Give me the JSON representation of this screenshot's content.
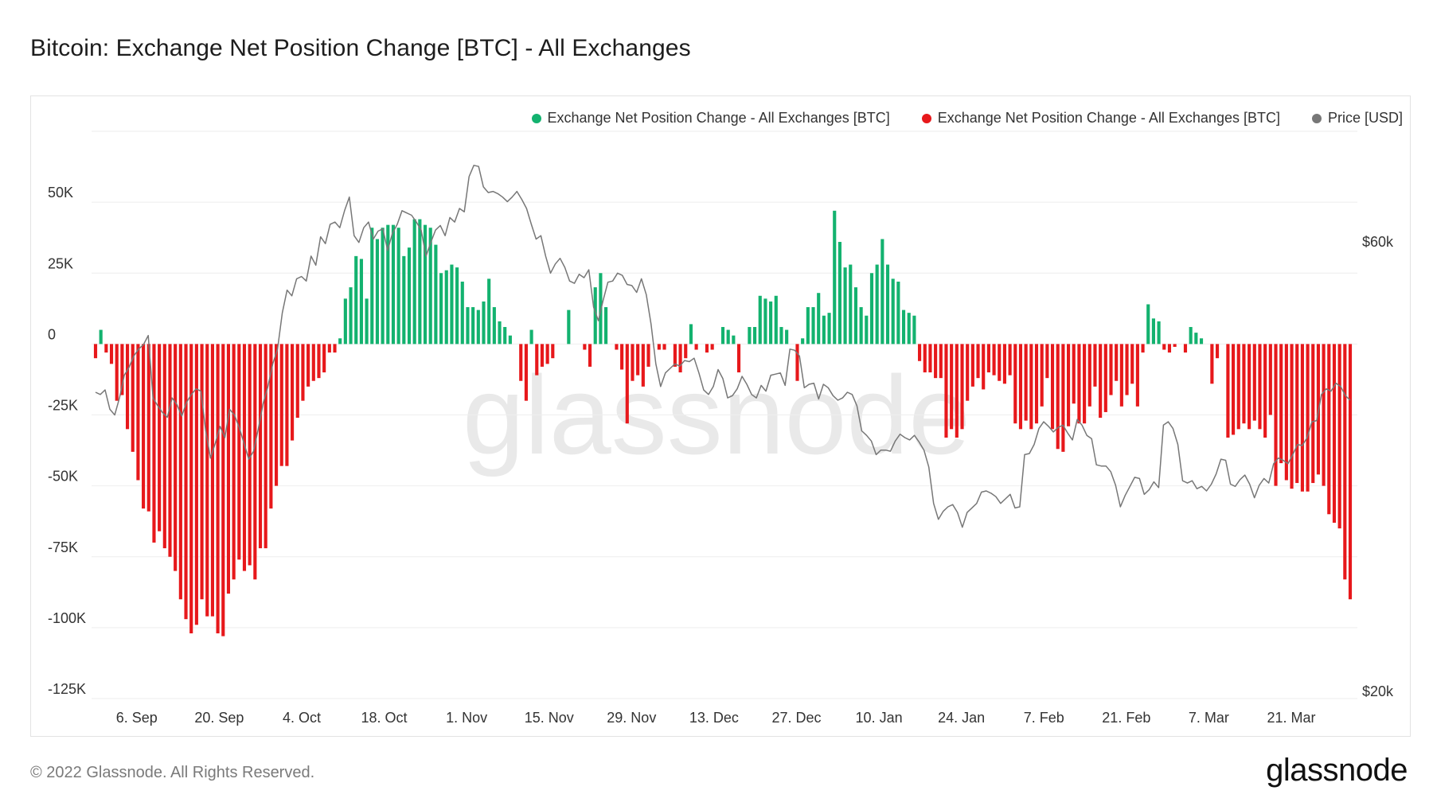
{
  "title": "Bitcoin: Exchange Net Position Change [BTC] - All Exchanges",
  "footer": "© 2022 Glassnode. All Rights Reserved.",
  "brand": "glassnode",
  "watermark": "glassnode",
  "chart_data": {
    "type": "bar",
    "title": "Bitcoin: Exchange Net Position Change [BTC] - All Exchanges",
    "legend": [
      {
        "label": "Exchange Net Position Change - All Exchanges [BTC]",
        "color": "#13b26f"
      },
      {
        "label": "Exchange Net Position Change - All Exchanges [BTC]",
        "color": "#e7181b"
      },
      {
        "label": "Price [USD]",
        "color": "#777777"
      }
    ],
    "legend_position": "top-right",
    "grid": true,
    "x_start": "2021-08-30",
    "x_end": "2022-03-31",
    "x_ticks": [
      "6. Sep",
      "20. Sep",
      "4. Oct",
      "18. Oct",
      "1. Nov",
      "15. Nov",
      "29. Nov",
      "13. Dec",
      "27. Dec",
      "10. Jan",
      "24. Jan",
      "7. Feb",
      "21. Feb",
      "7. Mar",
      "21. Mar"
    ],
    "y_left_ticks": [
      "50K",
      "25K",
      "0",
      "-25K",
      "-50K",
      "-75K",
      "-100K",
      "-125K"
    ],
    "y_left_range": [
      -125000,
      75000
    ],
    "y_right_ticks": [
      "$60k",
      "$20k"
    ],
    "y_right_range": [
      20000,
      70000
    ],
    "positive_color": "#13b26f",
    "negative_color": "#e7181b",
    "price_color": "#777777",
    "net_position_change": [
      -5000,
      5000,
      -3000,
      -7000,
      -20000,
      -18000,
      -30000,
      -38000,
      -48000,
      -58000,
      -59000,
      -70000,
      -66000,
      -72000,
      -75000,
      -80000,
      -90000,
      -97000,
      -102000,
      -99000,
      -90000,
      -96000,
      -96000,
      -102000,
      -103000,
      -88000,
      -83000,
      -76000,
      -80000,
      -78000,
      -83000,
      -72000,
      -72000,
      -58000,
      -50000,
      -43000,
      -43000,
      -34000,
      -26000,
      -20000,
      -15000,
      -13000,
      -12000,
      -10000,
      -3000,
      -3000,
      2000,
      16000,
      20000,
      31000,
      30000,
      16000,
      41000,
      37000,
      41000,
      42000,
      42000,
      41000,
      31000,
      34000,
      44000,
      44000,
      42000,
      41000,
      35000,
      25000,
      26000,
      28000,
      27000,
      22000,
      13000,
      13000,
      12000,
      15000,
      23000,
      13000,
      8000,
      6000,
      3000,
      0,
      -13000,
      -20000,
      5000,
      -11000,
      -8000,
      -7000,
      -5000,
      0,
      0,
      12000,
      0,
      0,
      -2000,
      -8000,
      20000,
      25000,
      13000,
      0,
      -2000,
      -9000,
      -28000,
      -13000,
      -11000,
      -15000,
      -8000,
      0,
      -2000,
      -2000,
      0,
      -8000,
      -10000,
      -5000,
      7000,
      -2000,
      0,
      -3000,
      -2000,
      0,
      6000,
      5000,
      3000,
      -10000,
      0,
      6000,
      6000,
      17000,
      16000,
      15000,
      17000,
      6000,
      5000,
      0,
      -13000,
      2000,
      13000,
      13000,
      18000,
      10000,
      11000,
      47000,
      36000,
      27000,
      28000,
      20000,
      13000,
      10000,
      25000,
      28000,
      37000,
      28000,
      23000,
      22000,
      12000,
      11000,
      10000,
      -6000,
      -10000,
      -10000,
      -12000,
      -12000,
      -33000,
      -30000,
      -33000,
      -30000,
      -20000,
      -15000,
      -12000,
      -16000,
      -10000,
      -11000,
      -13000,
      -14000,
      -11000,
      -28000,
      -30000,
      -27000,
      -30000,
      -28000,
      -22000,
      -12000,
      -30000,
      -37000,
      -38000,
      -29000,
      -21000,
      -28000,
      -28000,
      -22000,
      -15000,
      -26000,
      -24000,
      -18000,
      -13000,
      -22000,
      -18000,
      -14000,
      -22000,
      -3000,
      14000,
      9000,
      8000,
      -2000,
      -3000,
      -1000,
      0,
      -3000,
      6000,
      4000,
      2000,
      0,
      -14000,
      -5000,
      0,
      -33000,
      -32000,
      -30000,
      -28000,
      -30000,
      -27000,
      -30000,
      -33000,
      -25000,
      -50000,
      -42000,
      -48000,
      -51000,
      -49000,
      -52000,
      -52000,
      -49000,
      -46000,
      -50000,
      -60000,
      -63000,
      -65000,
      -83000,
      -90000
    ],
    "price_usd": [
      47000,
      46800,
      47200,
      45500,
      45000,
      46500,
      48500,
      49200,
      50200,
      50800,
      51200,
      52000,
      46500,
      45800,
      45200,
      44800,
      46500,
      45900,
      44900,
      46100,
      46800,
      47300,
      47100,
      43600,
      41200,
      42500,
      44000,
      43000,
      45500,
      45000,
      43900,
      42500,
      41100,
      41800,
      43800,
      46000,
      47500,
      49500,
      50800,
      54000,
      56000,
      55500,
      57000,
      57200,
      56800,
      59000,
      58200,
      60700,
      60100,
      61800,
      62000,
      61500,
      63000,
      64200,
      60800,
      60200,
      61500,
      62000,
      60500,
      61200,
      61400,
      59500,
      61000,
      61800,
      63000,
      62800,
      62600,
      62000,
      61300,
      59000,
      60200,
      61300,
      61700,
      60800,
      62400,
      62000,
      63200,
      62900,
      66000,
      67000,
      66900,
      65100,
      64600,
      64700,
      64500,
      64200,
      63800,
      64200,
      64700,
      64000,
      63200,
      61800,
      60500,
      60800,
      59000,
      57500,
      58300,
      58800,
      58000,
      56800,
      56600,
      57400,
      57100,
      57800,
      54500,
      53300,
      55100,
      56700,
      56800,
      57500,
      57300,
      56500,
      56400,
      55800,
      57000,
      55600,
      53000,
      49500,
      47500,
      48700,
      49100,
      49500,
      49300,
      49800,
      49700,
      50000,
      48700,
      47200,
      46800,
      47500,
      49000,
      48200,
      46500,
      46700,
      47300,
      48400,
      47700,
      46800,
      46500,
      47600,
      47100,
      48500,
      48600,
      48700,
      47600,
      50800,
      50700,
      50200,
      47400,
      47700,
      47800,
      46400,
      47700,
      47400,
      46700,
      46300,
      46500,
      47000,
      46800,
      45800,
      43600,
      43200,
      42700,
      41500,
      41900,
      41900,
      41800,
      42700,
      43300,
      43000,
      42800,
      43200,
      42600,
      41900,
      40400,
      37200,
      35800,
      36500,
      36900,
      37100,
      36400,
      35100,
      36400,
      36800,
      37200,
      38200,
      38300,
      38100,
      37800,
      37200,
      37600,
      38000,
      36800,
      36900,
      41500,
      41600,
      42400,
      43800,
      44400,
      44000,
      43500,
      43900,
      44100,
      43400,
      42800,
      44600,
      44100,
      43200,
      42900,
      40600,
      40500,
      40500,
      40000,
      38800,
      36900,
      37900,
      38700,
      39500,
      39400,
      38000,
      38400,
      39100,
      38600,
      44100,
      44400,
      43800,
      42400,
      39200,
      39000,
      39200,
      38500,
      38700,
      38300,
      38900,
      39800,
      41100,
      41000,
      38900,
      38700,
      39300,
      39700,
      38900,
      37700,
      38800,
      39400,
      39000,
      40700,
      41200,
      41000,
      40700,
      41500,
      42400,
      42300,
      43000,
      44400,
      44500,
      46800,
      47300,
      47100,
      47800,
      47500,
      46700,
      46300
    ]
  }
}
